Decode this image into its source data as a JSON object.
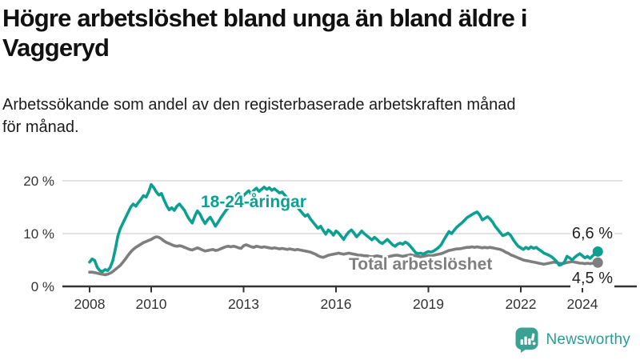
{
  "header": {
    "title": "Högre arbetslöshet bland unga än bland äldre i Vaggeryd",
    "subtitle": "Arbetssökande som andel av den registerbaserade arbetskraften månad för månad."
  },
  "chart_data": {
    "type": "line",
    "unit": "%",
    "x_start": "2008-01",
    "x_end": "2024-07",
    "points_per_year": 12,
    "ylim": [
      0,
      21
    ],
    "grid": "horizontal",
    "y_axis": [
      {
        "value": 0,
        "label": "0 %"
      },
      {
        "value": 10,
        "label": "10 %"
      },
      {
        "value": 20,
        "label": "20 %"
      }
    ],
    "x_ticks": [
      {
        "year": 2008,
        "label": "2008"
      },
      {
        "year": 2010,
        "label": "2010"
      },
      {
        "year": 2013,
        "label": "2013"
      },
      {
        "year": 2016,
        "label": "2016"
      },
      {
        "year": 2019,
        "label": "2019"
      },
      {
        "year": 2022,
        "label": "2022"
      },
      {
        "year": 2024,
        "label": "2024"
      }
    ],
    "series": [
      {
        "name": "Total arbetslöshet",
        "color": "#7e7e7e",
        "end_label": "4,5 %",
        "end_value": 4.5,
        "values": [
          2.7,
          2.7,
          2.6,
          2.5,
          2.4,
          2.3,
          2.2,
          2.3,
          2.5,
          2.8,
          3.2,
          3.6,
          4.0,
          4.6,
          5.2,
          5.9,
          6.5,
          7.0,
          7.4,
          7.7,
          8.0,
          8.3,
          8.5,
          8.7,
          8.9,
          9.2,
          9.4,
          9.3,
          9.0,
          8.6,
          8.3,
          8.1,
          7.9,
          7.7,
          7.6,
          7.7,
          7.6,
          7.4,
          7.2,
          7.0,
          6.9,
          7.1,
          7.3,
          7.1,
          6.9,
          6.7,
          6.8,
          6.9,
          7.0,
          6.8,
          6.9,
          7.1,
          7.3,
          7.5,
          7.6,
          7.5,
          7.6,
          7.5,
          7.3,
          7.2,
          7.7,
          7.9,
          7.7,
          7.5,
          7.4,
          7.6,
          7.5,
          7.4,
          7.5,
          7.4,
          7.3,
          7.2,
          7.3,
          7.2,
          7.1,
          7.2,
          7.1,
          7.0,
          7.1,
          7.0,
          6.9,
          7.0,
          6.9,
          6.8,
          6.7,
          6.6,
          6.5,
          6.3,
          6.1,
          5.8,
          5.6,
          5.5,
          5.7,
          5.9,
          6.0,
          6.1,
          6.2,
          6.3,
          6.2,
          6.1,
          6.2,
          6.3,
          6.2,
          6.1,
          6.0,
          5.9,
          5.9,
          5.8,
          5.8,
          5.7,
          5.6,
          5.7,
          5.8,
          5.7,
          5.6,
          5.5,
          5.6,
          5.7,
          5.8,
          5.9,
          5.9,
          5.8,
          5.7,
          5.8,
          5.9,
          6.0,
          5.9,
          5.8,
          5.7,
          5.6,
          5.7,
          5.8,
          5.9,
          5.8,
          5.9,
          6.0,
          6.1,
          6.2,
          6.4,
          6.6,
          6.8,
          6.9,
          7.0,
          7.1,
          7.1,
          7.2,
          7.3,
          7.4,
          7.4,
          7.5,
          7.4,
          7.5,
          7.4,
          7.3,
          7.4,
          7.3,
          7.4,
          7.3,
          7.2,
          7.1,
          7.0,
          6.8,
          6.5,
          6.3,
          6.0,
          5.8,
          5.6,
          5.4,
          5.2,
          5.0,
          4.9,
          4.8,
          4.7,
          4.6,
          4.5,
          4.4,
          4.3,
          4.2,
          4.3,
          4.4,
          4.5,
          4.6,
          4.5,
          4.4,
          4.3,
          4.4,
          4.5,
          4.6,
          4.7,
          4.6,
          4.5,
          4.4,
          4.4,
          4.3,
          4.4,
          4.3,
          4.4,
          4.4,
          4.5
        ]
      },
      {
        "name": "18-24-åringar",
        "color": "#0da092",
        "end_label": "6,6 %",
        "end_value": 6.6,
        "values": [
          4.6,
          5.2,
          4.9,
          3.6,
          3.0,
          2.8,
          3.2,
          3.0,
          3.6,
          4.8,
          7.0,
          9.5,
          11.0,
          12.0,
          13.0,
          14.0,
          15.0,
          15.6,
          15.2,
          15.9,
          16.5,
          17.2,
          16.9,
          17.9,
          19.3,
          18.7,
          17.9,
          17.3,
          17.6,
          16.4,
          15.3,
          14.5,
          14.9,
          14.4,
          15.2,
          15.6,
          15.0,
          14.4,
          13.4,
          12.6,
          12.0,
          13.3,
          14.3,
          13.7,
          12.7,
          11.9,
          12.6,
          13.1,
          12.3,
          11.4,
          12.1,
          12.9,
          13.6,
          14.3,
          14.9,
          15.3,
          16.5,
          17.1,
          17.6,
          16.9,
          17.2,
          17.7,
          18.1,
          17.5,
          18.2,
          18.6,
          18.0,
          18.4,
          18.8,
          18.4,
          18.7,
          18.2,
          18.5,
          18.1,
          17.7,
          17.9,
          17.3,
          16.8,
          16.4,
          16.0,
          15.5,
          15.0,
          14.4,
          13.8,
          13.3,
          13.6,
          12.8,
          12.2,
          11.6,
          11.0,
          11.4,
          10.6,
          9.9,
          10.7,
          10.3,
          9.7,
          10.5,
          10.1,
          9.5,
          8.9,
          9.7,
          10.3,
          10.7,
          10.1,
          9.4,
          9.9,
          10.5,
          10.0,
          9.6,
          9.2,
          8.8,
          9.3,
          8.9,
          8.4,
          8.1,
          8.5,
          8.9,
          8.4,
          7.9,
          7.6,
          8.0,
          8.2,
          8.0,
          8.4,
          8.1,
          7.6,
          7.0,
          6.4,
          6.2,
          6.3,
          6.1,
          6.4,
          6.6,
          6.5,
          6.7,
          7.0,
          7.4,
          7.9,
          8.8,
          9.6,
          10.4,
          10.0,
          10.6,
          11.2,
          11.6,
          12.0,
          12.5,
          13.0,
          13.3,
          13.6,
          13.9,
          14.1,
          13.5,
          12.6,
          12.9,
          13.2,
          12.8,
          12.2,
          11.4,
          10.8,
          10.2,
          9.6,
          9.8,
          10.1,
          9.7,
          8.9,
          8.2,
          7.6,
          7.3,
          7.0,
          7.4,
          7.1,
          7.5,
          7.2,
          7.4,
          7.0,
          6.7,
          6.3,
          6.1,
          5.9,
          5.6,
          5.2,
          4.7,
          4.0,
          4.2,
          4.6,
          5.7,
          5.4,
          5.0,
          5.5,
          5.9,
          6.2,
          5.8,
          5.4,
          5.7,
          5.3,
          5.8,
          6.2,
          6.6
        ]
      }
    ]
  },
  "footer": {
    "brand": "Newsworthy",
    "logo_icon": "bar-chart-speech-bubble-icon",
    "logo_color": "#3aa293",
    "brand_text_color": "#2a9d96"
  },
  "colors": {
    "youth_line": "#0da092",
    "total_line": "#7e7e7e",
    "gridline": "#d9d9d9",
    "axis": "#333333"
  }
}
